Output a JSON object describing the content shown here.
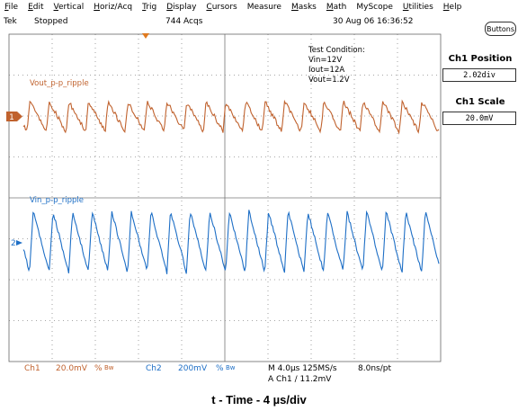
{
  "menu": {
    "items": [
      {
        "mn": "F",
        "rest": "ile"
      },
      {
        "mn": "E",
        "rest": "dit"
      },
      {
        "mn": "V",
        "rest": "ertical"
      },
      {
        "mn": "H",
        "rest": "oriz/Acq"
      },
      {
        "mn": "T",
        "rest": "rig"
      },
      {
        "mn": "D",
        "rest": "isplay"
      },
      {
        "mn": "C",
        "rest": "ursors"
      },
      {
        "mn": "",
        "rest": "Measure"
      },
      {
        "mn": "M",
        "rest": "asks"
      },
      {
        "mn": "M",
        "rest": "ath"
      },
      {
        "mn": "",
        "rest": "MyScope"
      },
      {
        "mn": "U",
        "rest": "tilities"
      },
      {
        "mn": "H",
        "rest": "elp"
      }
    ]
  },
  "status": {
    "brand": "Tek",
    "state": "Stopped",
    "acqs": "744 Acqs",
    "datetime": "30 Aug 06 16:36:52"
  },
  "buttons_label": "Buttons",
  "side_panel": {
    "position_title": "Ch1 Position",
    "position_value": "2.02div",
    "scale_title": "Ch1 Scale",
    "scale_value": "20.0mV"
  },
  "test_condition": {
    "title": "Test Condition:",
    "vin": "Vin=12V",
    "iout": "Iout=12A",
    "vout": "Vout=1.2V"
  },
  "traces": {
    "ch1_label": "Vout_p-p_ripple",
    "ch2_label": "Vin_p-p_ripple",
    "ch1_marker": "1",
    "ch2_marker": "2",
    "ch1_color": "#C0622E",
    "ch2_color": "#1E6FC6"
  },
  "bottom": {
    "ch1": "Ch1",
    "ch1_scale": "20.0mV",
    "ch1_bw": "Bw",
    "ch2": "Ch2",
    "ch2_scale": "200mV",
    "ch2_bw": "Bw",
    "horiz": "M 4.0µs 125MS/s",
    "pt": "8.0ns/pt",
    "trigger": "A  Ch1  ∕  11.2mV"
  },
  "caption": "t - Time - 4 µs/div"
}
